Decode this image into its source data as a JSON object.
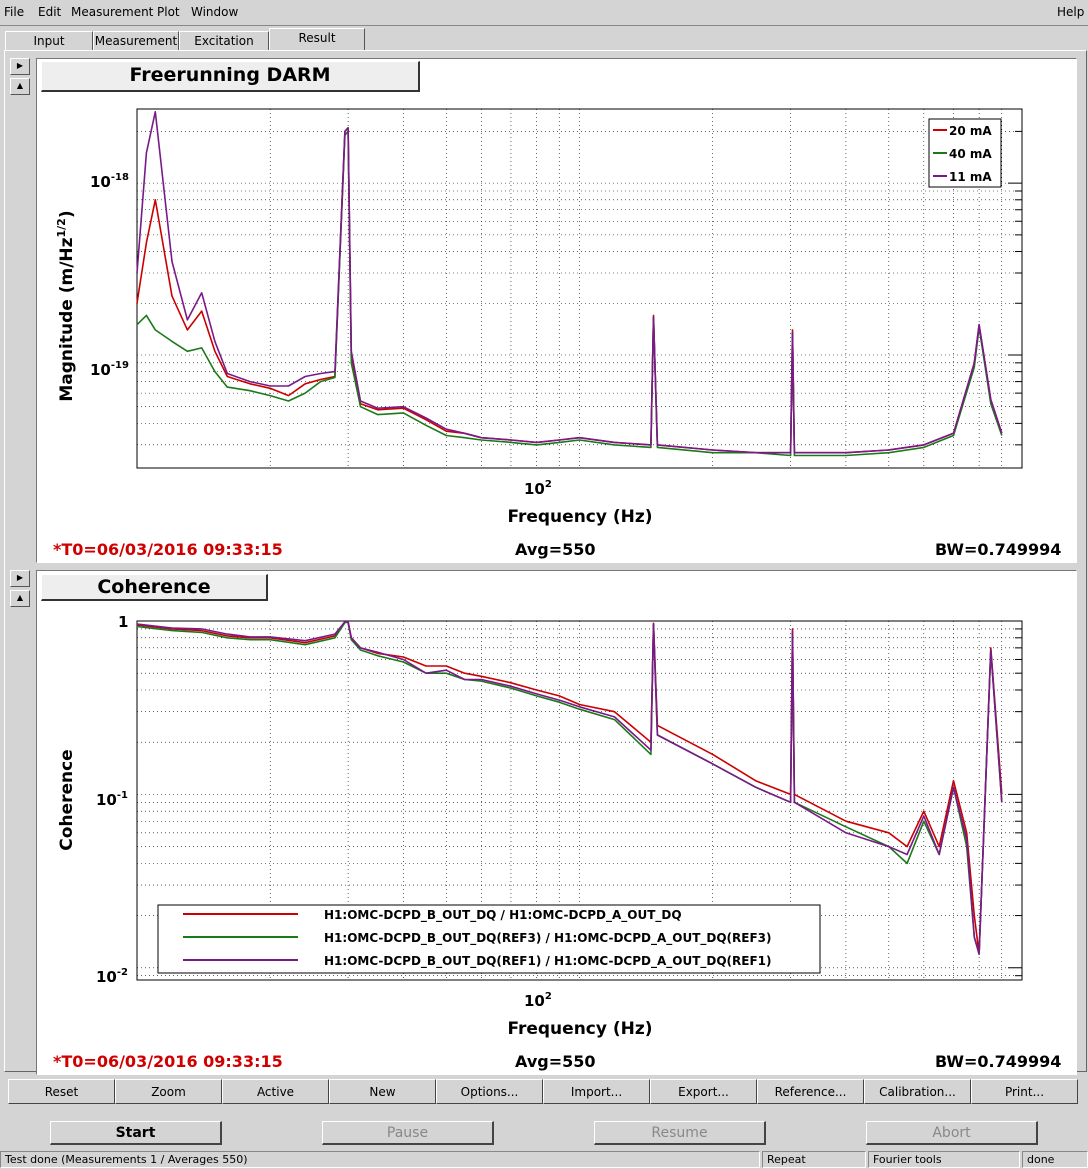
{
  "menu": {
    "file": "File",
    "edit": "Edit",
    "measurement": "Measurement",
    "plot": "Plot",
    "window": "Window",
    "help": "Help"
  },
  "tabs": [
    "Input",
    "Measurement",
    "Excitation",
    "Result"
  ],
  "plot1": {
    "title": "Freerunning DARM",
    "ylabel_main": "Magnitude (m/Hz",
    "ylabel_sup": "1/2",
    "ylabel_end": ")",
    "xlabel": "Frequency (Hz)",
    "ytick1_base": "10",
    "ytick1_exp": "-18",
    "ytick2_base": "10",
    "ytick2_exp": "-19",
    "xtick_base": "10",
    "xtick_exp": "2",
    "legend": [
      "20 mA",
      "40 mA",
      "11 mA"
    ],
    "t0": "*T0=06/03/2016 09:33:15",
    "avg": "Avg=550",
    "bw": "BW=0.749994"
  },
  "plot2": {
    "title": "Coherence",
    "ylabel": "Coherence",
    "xlabel": "Frequency (Hz)",
    "ytick0": "1",
    "ytick1_base": "10",
    "ytick1_exp": "-1",
    "ytick2_base": "10",
    "ytick2_exp": "-2",
    "xtick_base": "10",
    "xtick_exp": "2",
    "legend": [
      "H1:OMC-DCPD_B_OUT_DQ / H1:OMC-DCPD_A_OUT_DQ",
      "H1:OMC-DCPD_B_OUT_DQ(REF3) / H1:OMC-DCPD_A_OUT_DQ(REF3)",
      "H1:OMC-DCPD_B_OUT_DQ(REF1) / H1:OMC-DCPD_A_OUT_DQ(REF1)"
    ],
    "t0": "*T0=06/03/2016 09:33:15",
    "avg": "Avg=550",
    "bw": "BW=0.749994"
  },
  "colors": {
    "red": "#cc0000",
    "green": "#1a7a1a",
    "purple": "#7a1a8a"
  },
  "toolbar": [
    "Reset",
    "Zoom",
    "Active",
    "New",
    "Options...",
    "Import...",
    "Export...",
    "Reference...",
    "Calibration...",
    "Print..."
  ],
  "controls": {
    "start": "Start",
    "pause": "Pause",
    "resume": "Resume",
    "abort": "Abort"
  },
  "status": {
    "message": "Test done (Measurements 1 / Averages 550)",
    "repeat": "Repeat",
    "tools": "Fourier tools",
    "state": "done"
  },
  "chart_data": [
    {
      "type": "line",
      "title": "Freerunning DARM",
      "xlabel": "Frequency (Hz)",
      "ylabel": "Magnitude (m/Hz^1/2)",
      "xscale": "log",
      "yscale": "log",
      "xlim": [
        10,
        1000
      ],
      "ylim": [
        2.2e-20,
        2.7e-18
      ],
      "x": [
        10,
        10.5,
        11,
        12,
        13,
        14,
        15,
        16,
        18,
        20,
        22,
        24,
        26,
        28,
        29.5,
        30,
        30.5,
        32,
        35,
        40,
        45,
        50,
        55,
        60,
        70,
        80,
        90,
        100,
        120,
        145,
        147,
        150,
        200,
        250,
        300,
        303,
        306,
        400,
        500,
        600,
        700,
        780,
        800,
        850,
        900
      ],
      "series": [
        {
          "name": "20 mA",
          "values": [
            2e-19,
            4.5e-19,
            8e-19,
            2.2e-19,
            1.4e-19,
            1.8e-19,
            1.05e-19,
            7.5e-20,
            6.8e-20,
            6.4e-20,
            5.8e-20,
            6.8e-20,
            7.2e-20,
            7.5e-20,
            2e-18,
            2.1e-18,
            1e-19,
            5.2e-20,
            4.8e-20,
            4.9e-20,
            4.2e-20,
            3.6e-20,
            3.5e-20,
            3.3e-20,
            3.2e-20,
            3.1e-20,
            3.2e-20,
            3.3e-20,
            3.1e-20,
            3e-20,
            1.7e-19,
            3e-20,
            2.8e-20,
            2.7e-20,
            2.7e-20,
            1.4e-19,
            2.7e-20,
            2.7e-20,
            2.8e-20,
            3e-20,
            3.5e-20,
            9e-20,
            1.5e-19,
            5.5e-20,
            3.5e-20
          ]
        },
        {
          "name": "40 mA",
          "values": [
            1.5e-19,
            1.7e-19,
            1.4e-19,
            1.2e-19,
            1.05e-19,
            1.1e-19,
            8e-20,
            6.5e-20,
            6.2e-20,
            5.8e-20,
            5.4e-20,
            6e-20,
            7e-20,
            7.4e-20,
            1.9e-18,
            2e-18,
            9e-20,
            5e-20,
            4.5e-20,
            4.6e-20,
            3.9e-20,
            3.4e-20,
            3.3e-20,
            3.2e-20,
            3.1e-20,
            3e-20,
            3.1e-20,
            3.2e-20,
            3e-20,
            2.9e-20,
            1.65e-19,
            2.9e-20,
            2.7e-20,
            2.7e-20,
            2.6e-20,
            1.35e-19,
            2.6e-20,
            2.6e-20,
            2.7e-20,
            2.9e-20,
            3.4e-20,
            8.5e-20,
            1.45e-19,
            5.2e-20,
            3.4e-20
          ]
        },
        {
          "name": "11 mA",
          "values": [
            3e-19,
            1.5e-18,
            2.6e-18,
            3.5e-19,
            1.6e-19,
            2.3e-19,
            1.2e-19,
            7.8e-20,
            7e-20,
            6.6e-20,
            6.6e-20,
            7.5e-20,
            7.8e-20,
            8e-20,
            2e-18,
            2.1e-18,
            1.05e-19,
            5.4e-20,
            4.9e-20,
            5e-20,
            4.3e-20,
            3.7e-20,
            3.5e-20,
            3.3e-20,
            3.2e-20,
            3.1e-20,
            3.2e-20,
            3.3e-20,
            3.1e-20,
            3e-20,
            1.65e-19,
            3e-20,
            2.8e-20,
            2.7e-20,
            2.7e-20,
            1.35e-19,
            2.7e-20,
            2.7e-20,
            2.8e-20,
            3e-20,
            3.5e-20,
            9e-20,
            1.5e-19,
            5.5e-20,
            3.5e-20
          ]
        }
      ],
      "grid": true,
      "legend": "top-right"
    },
    {
      "type": "line",
      "title": "Coherence",
      "xlabel": "Frequency (Hz)",
      "ylabel": "Coherence",
      "xscale": "log",
      "yscale": "log",
      "xlim": [
        10,
        1000
      ],
      "ylim": [
        0.0085,
        1
      ],
      "x": [
        10,
        12,
        14,
        16,
        18,
        20,
        24,
        28,
        29.5,
        30,
        30.5,
        32,
        35,
        40,
        45,
        50,
        55,
        60,
        70,
        80,
        90,
        100,
        120,
        145,
        147,
        150,
        200,
        250,
        300,
        303,
        306,
        400,
        500,
        550,
        600,
        650,
        700,
        750,
        780,
        800,
        850,
        900
      ],
      "series": [
        {
          "name": "H1:OMC-DCPD_B_OUT_DQ / H1:OMC-DCPD_A_OUT_DQ",
          "values": [
            0.95,
            0.9,
            0.88,
            0.82,
            0.8,
            0.8,
            0.75,
            0.82,
            0.99,
            0.99,
            0.8,
            0.7,
            0.65,
            0.62,
            0.55,
            0.55,
            0.5,
            0.48,
            0.44,
            0.4,
            0.37,
            0.33,
            0.3,
            0.2,
            0.97,
            0.25,
            0.17,
            0.12,
            0.1,
            0.9,
            0.1,
            0.07,
            0.06,
            0.05,
            0.08,
            0.05,
            0.12,
            0.06,
            0.02,
            0.012,
            0.7,
            0.1
          ]
        },
        {
          "name": "H1:OMC-DCPD_B_OUT_DQ(REF3) / H1:OMC-DCPD_A_OUT_DQ(REF3)",
          "values": [
            0.93,
            0.88,
            0.86,
            0.8,
            0.78,
            0.78,
            0.73,
            0.8,
            0.98,
            0.98,
            0.78,
            0.68,
            0.63,
            0.58,
            0.5,
            0.5,
            0.46,
            0.45,
            0.41,
            0.37,
            0.34,
            0.31,
            0.27,
            0.17,
            0.95,
            0.22,
            0.15,
            0.11,
            0.09,
            0.85,
            0.09,
            0.065,
            0.05,
            0.04,
            0.07,
            0.045,
            0.11,
            0.05,
            0.015,
            0.012,
            0.68,
            0.09
          ]
        },
        {
          "name": "H1:OMC-DCPD_B_OUT_DQ(REF1) / H1:OMC-DCPD_A_OUT_DQ(REF1)",
          "values": [
            0.96,
            0.91,
            0.9,
            0.84,
            0.81,
            0.81,
            0.77,
            0.84,
            0.99,
            0.99,
            0.8,
            0.7,
            0.66,
            0.6,
            0.5,
            0.52,
            0.46,
            0.46,
            0.42,
            0.38,
            0.35,
            0.32,
            0.28,
            0.18,
            0.96,
            0.22,
            0.15,
            0.11,
            0.09,
            0.87,
            0.09,
            0.06,
            0.05,
            0.045,
            0.075,
            0.045,
            0.11,
            0.055,
            0.015,
            0.012,
            0.68,
            0.09
          ]
        }
      ],
      "grid": true,
      "legend": "bottom-left"
    }
  ]
}
